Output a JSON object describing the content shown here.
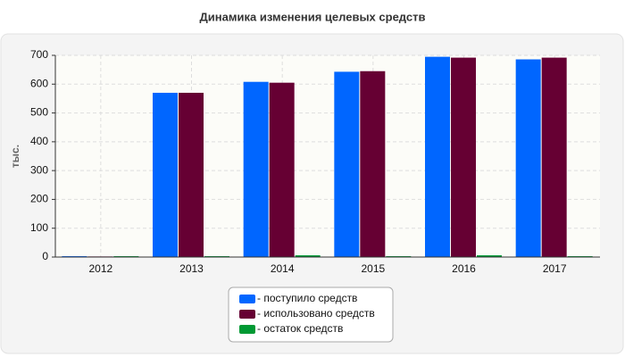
{
  "chart_data": {
    "type": "bar",
    "title": "Динамика изменения целевых средств",
    "y_label": "тыс.",
    "categories": [
      "2012",
      "2013",
      "2014",
      "2015",
      "2016",
      "2017"
    ],
    "series": [
      {
        "name": "- поступило средств",
        "color": "#0066ff",
        "values": [
          3,
          570,
          608,
          643,
          695,
          686
        ]
      },
      {
        "name": "- использовано средств",
        "color": "#660033",
        "values": [
          2,
          570,
          605,
          645,
          692,
          692
        ]
      },
      {
        "name": "- остаток средств",
        "color": "#009933",
        "values": [
          3,
          3,
          6,
          3,
          6,
          3
        ]
      }
    ],
    "ylim": [
      0,
      700
    ],
    "yticks": [
      0,
      100,
      200,
      300,
      400,
      500,
      600,
      700
    ],
    "grid": true
  }
}
